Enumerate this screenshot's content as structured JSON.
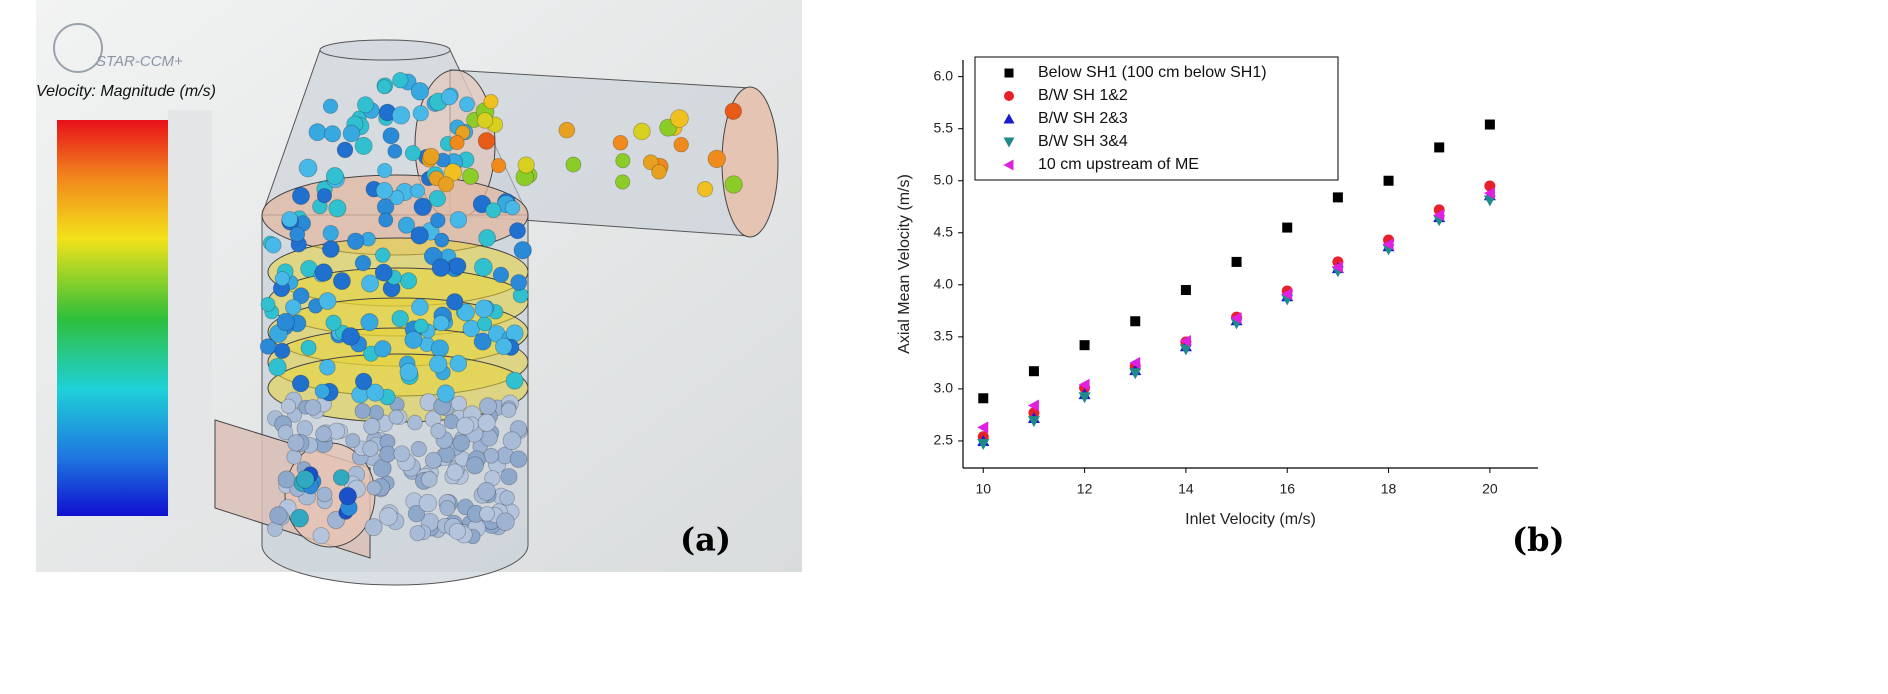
{
  "panel_a": {
    "logo": "STAR-CCM+",
    "colorbar_title": "Velocity: Magnitude (m/s)",
    "label": "(a)"
  },
  "panel_b_label": "(b)",
  "chart_data": {
    "type": "scatter",
    "x_label": "Inlet Velocity (m/s)",
    "y_label": "Axial Mean Velocity (m/s)",
    "x": [
      10,
      11,
      12,
      13,
      14,
      15,
      16,
      17,
      18,
      19,
      20
    ],
    "xlim": [
      9.6,
      20.95
    ],
    "xticks": [
      10,
      12,
      14,
      16,
      18,
      20
    ],
    "ylim": [
      2.24,
      6.16
    ],
    "yticks": [
      2.5,
      {
        "value": 3,
        "label": "3.0"
      },
      3.5,
      {
        "value": 4,
        "label": "4.0"
      },
      4.5,
      {
        "value": 5,
        "label": "5.0"
      },
      5.5,
      {
        "value": 6,
        "label": "6.0"
      }
    ],
    "legend": "top-left",
    "series": [
      {
        "name": "Below SH1 (100 cm below SH1)",
        "color": "#000000",
        "marker": "square",
        "values": [
          2.91,
          3.17,
          3.42,
          3.65,
          3.95,
          4.22,
          4.55,
          4.84,
          5.0,
          5.32,
          5.54
        ]
      },
      {
        "name": "B/W SH 1&2",
        "color": "#e8202a",
        "marker": "circle",
        "values": [
          2.54,
          2.77,
          3.01,
          3.22,
          3.45,
          3.69,
          3.94,
          4.22,
          4.43,
          4.72,
          4.95
        ]
      },
      {
        "name": "B/W SH 2&3",
        "color": "#1a1ad0",
        "marker": "triangle-up",
        "values": [
          2.5,
          2.72,
          2.95,
          3.18,
          3.41,
          3.66,
          3.89,
          4.16,
          4.37,
          4.65,
          4.86
        ]
      },
      {
        "name": "B/W SH 3&4",
        "color": "#1f8a8a",
        "marker": "triangle-down",
        "values": [
          2.47,
          2.69,
          2.92,
          3.15,
          3.38,
          3.63,
          3.86,
          4.13,
          4.34,
          4.62,
          4.81
        ]
      },
      {
        "name": "10 cm upstream of ME",
        "color": "#e020e0",
        "marker": "triangle-left",
        "values": [
          2.63,
          2.84,
          3.04,
          3.25,
          3.46,
          3.68,
          3.91,
          4.17,
          4.39,
          4.67,
          4.88
        ]
      }
    ]
  }
}
